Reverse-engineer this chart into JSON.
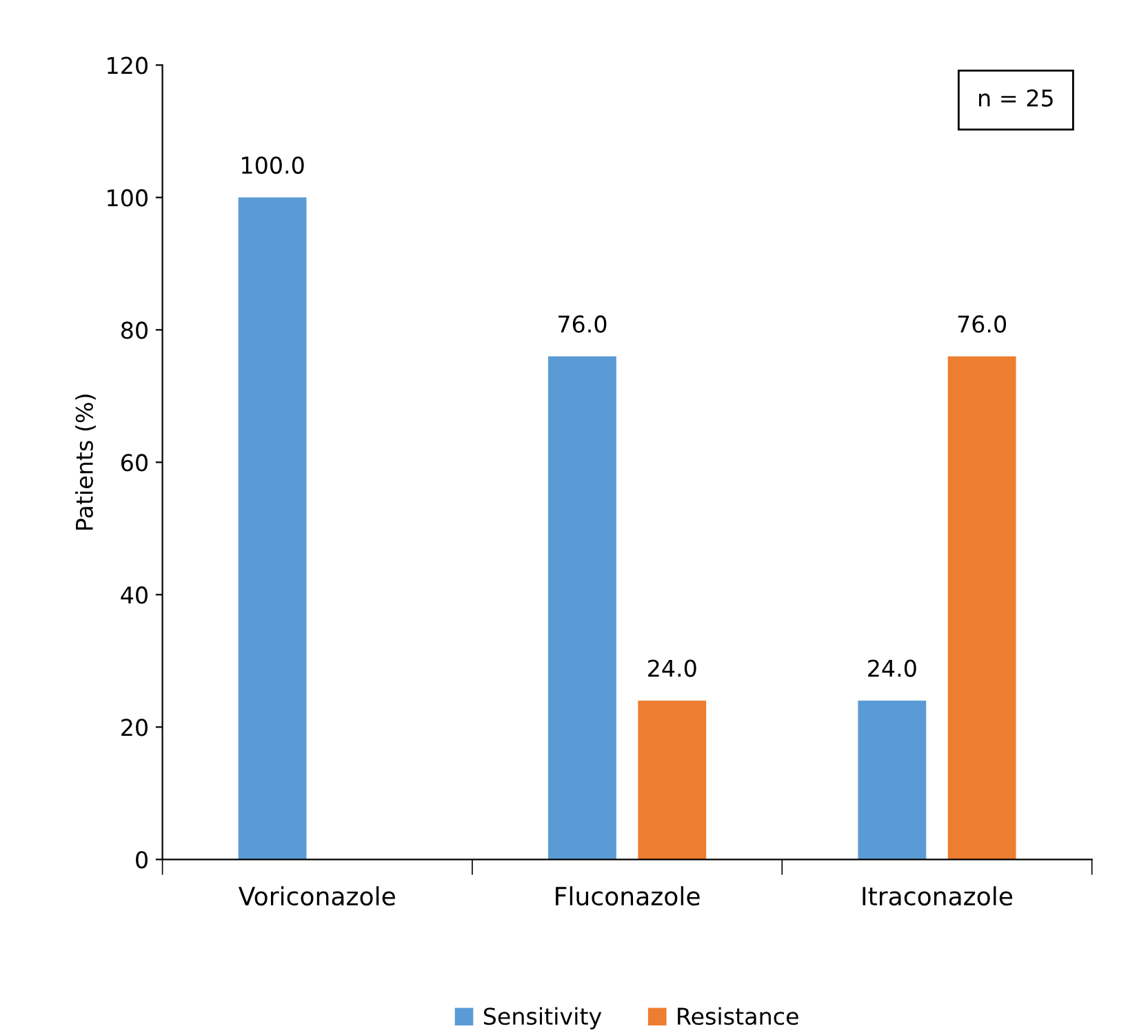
{
  "chart_data": {
    "type": "bar",
    "ylabel": "Patients (%)",
    "categories": [
      "Voriconazole",
      "Fluconazole",
      "Itraconazole"
    ],
    "series": [
      {
        "name": "Sensitivity",
        "color": "#5b9bd5",
        "values": [
          100.0,
          76.0,
          24.0
        ],
        "value_labels": [
          "100.0",
          "76.0",
          "24.0"
        ]
      },
      {
        "name": "Resistance",
        "color": "#ed7d31",
        "values": [
          0,
          24.0,
          76.0
        ],
        "value_labels": [
          null,
          "24.0",
          "76.0"
        ]
      }
    ],
    "ylim": [
      0,
      120
    ],
    "yticks": [
      0,
      20,
      40,
      60,
      80,
      100,
      120
    ],
    "grid": false,
    "legend": "bottom",
    "annotations": [
      "n = 25"
    ]
  }
}
